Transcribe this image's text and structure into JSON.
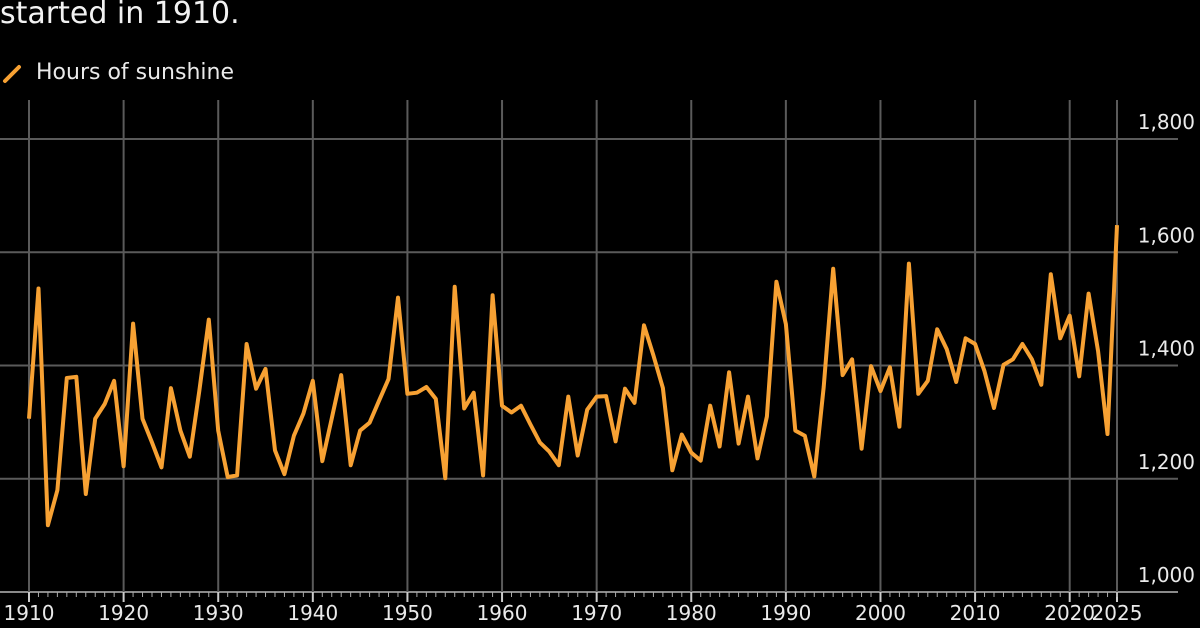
{
  "chart_data": {
    "type": "line",
    "subtitle": "started in 1910.",
    "legend": [
      "Hours of sunshine"
    ],
    "legend_placement": "top-left",
    "colors": {
      "series": "#f7a133",
      "background": "#000000",
      "grid": "#5a5a5a",
      "text": "#eaeaea"
    },
    "grid": true,
    "xlim": [
      1910,
      2025
    ],
    "ylim": [
      1000,
      1800
    ],
    "x_ticks": [
      "1910",
      "1920",
      "1930",
      "1940",
      "1950",
      "1960",
      "1970",
      "1980",
      "1990",
      "2000",
      "2010",
      "2020",
      "2025"
    ],
    "y_ticks": [
      "1,000",
      "1,200",
      "1,400",
      "1,600",
      "1,800"
    ],
    "y_axis_side": "right",
    "series": [
      {
        "name": "Hours of sunshine",
        "x": [
          1910,
          1911,
          1912,
          1913,
          1914,
          1915,
          1916,
          1917,
          1918,
          1919,
          1920,
          1921,
          1922,
          1923,
          1924,
          1925,
          1926,
          1927,
          1928,
          1929,
          1930,
          1931,
          1932,
          1933,
          1934,
          1935,
          1936,
          1937,
          1938,
          1939,
          1940,
          1941,
          1942,
          1943,
          1944,
          1945,
          1946,
          1947,
          1948,
          1949,
          1950,
          1951,
          1952,
          1953,
          1954,
          1955,
          1956,
          1957,
          1958,
          1959,
          1960,
          1961,
          1962,
          1963,
          1964,
          1965,
          1966,
          1967,
          1968,
          1969,
          1970,
          1971,
          1972,
          1973,
          1974,
          1975,
          1976,
          1977,
          1978,
          1979,
          1980,
          1981,
          1982,
          1983,
          1984,
          1985,
          1986,
          1987,
          1988,
          1989,
          1990,
          1991,
          1992,
          1993,
          1994,
          1995,
          1996,
          1997,
          1998,
          1999,
          2000,
          2001,
          2002,
          2003,
          2004,
          2005,
          2006,
          2007,
          2008,
          2009,
          2010,
          2011,
          2012,
          2013,
          2014,
          2015,
          2016,
          2017,
          2018,
          2019,
          2020,
          2021,
          2022,
          2023,
          2024,
          2025
        ],
        "values": [
          1306,
          1536,
          1118,
          1180,
          1378,
          1380,
          1173,
          1306,
          1332,
          1373,
          1222,
          1474,
          1306,
          1264,
          1220,
          1360,
          1285,
          1239,
          1355,
          1481,
          1285,
          1203,
          1206,
          1438,
          1359,
          1394,
          1250,
          1208,
          1276,
          1315,
          1373,
          1231,
          1306,
          1383,
          1224,
          1285,
          1299,
          1338,
          1376,
          1520,
          1350,
          1352,
          1362,
          1341,
          1201,
          1539,
          1324,
          1352,
          1206,
          1524,
          1329,
          1317,
          1329,
          1296,
          1264,
          1248,
          1224,
          1345,
          1241,
          1322,
          1345,
          1346,
          1266,
          1359,
          1334,
          1471,
          1418,
          1360,
          1215,
          1278,
          1246,
          1232,
          1329,
          1257,
          1388,
          1262,
          1345,
          1236,
          1310,
          1548,
          1473,
          1285,
          1276,
          1204,
          1362,
          1571,
          1383,
          1411,
          1253,
          1399,
          1355,
          1397,
          1292,
          1580,
          1350,
          1373,
          1464,
          1429,
          1371,
          1448,
          1438,
          1390,
          1325,
          1401,
          1411,
          1438,
          1411,
          1366,
          1561,
          1448,
          1488,
          1381,
          1527,
          1425,
          1279,
          1648
        ]
      }
    ]
  }
}
